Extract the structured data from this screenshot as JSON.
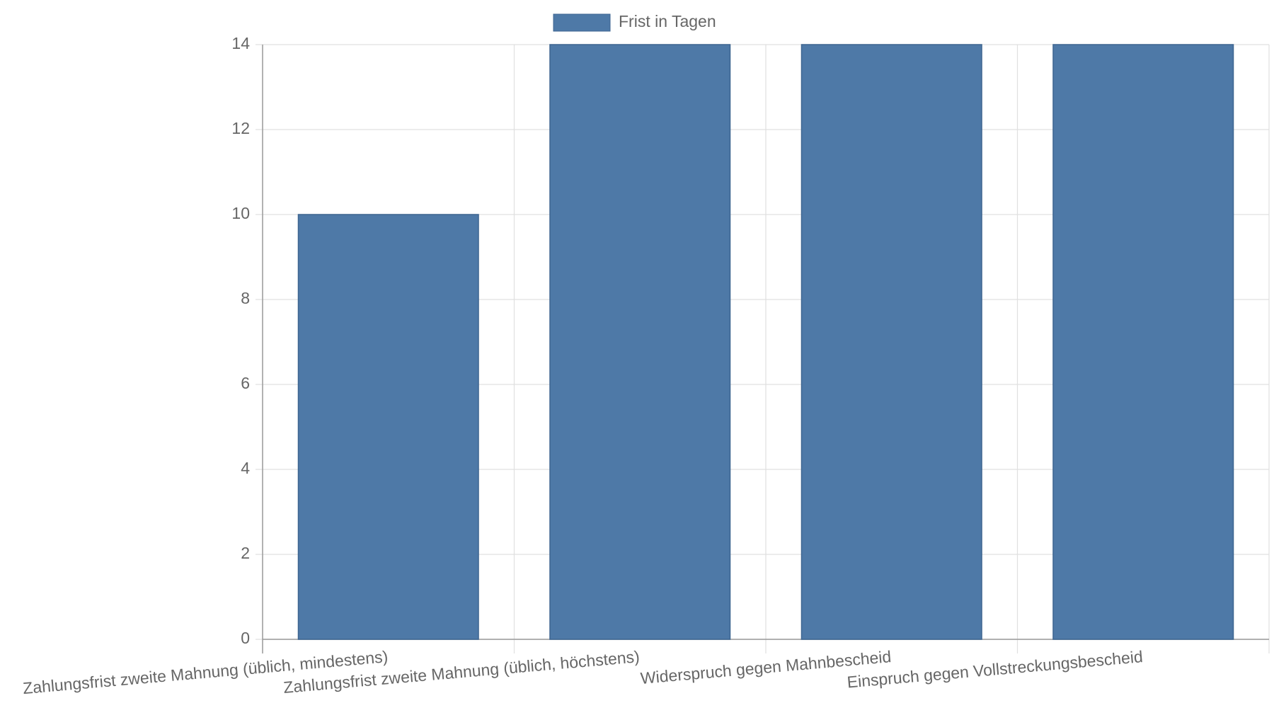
{
  "chart_data": {
    "type": "bar",
    "categories": [
      "Zahlungsfrist zweite Mahnung (üblich, mindestens)",
      "Zahlungsfrist zweite Mahnung (üblich, höchstens)",
      "Widerspruch gegen Mahnbescheid",
      "Einspruch gegen Vollstreckungsbescheid"
    ],
    "series": [
      {
        "name": "Frist in Tagen",
        "color": "#4e79a7",
        "values": [
          10,
          14,
          14,
          14
        ]
      }
    ],
    "ylim": [
      0,
      14
    ],
    "yticks": [
      0,
      2,
      4,
      6,
      8,
      10,
      12,
      14
    ],
    "grid": true,
    "legend": "top"
  }
}
